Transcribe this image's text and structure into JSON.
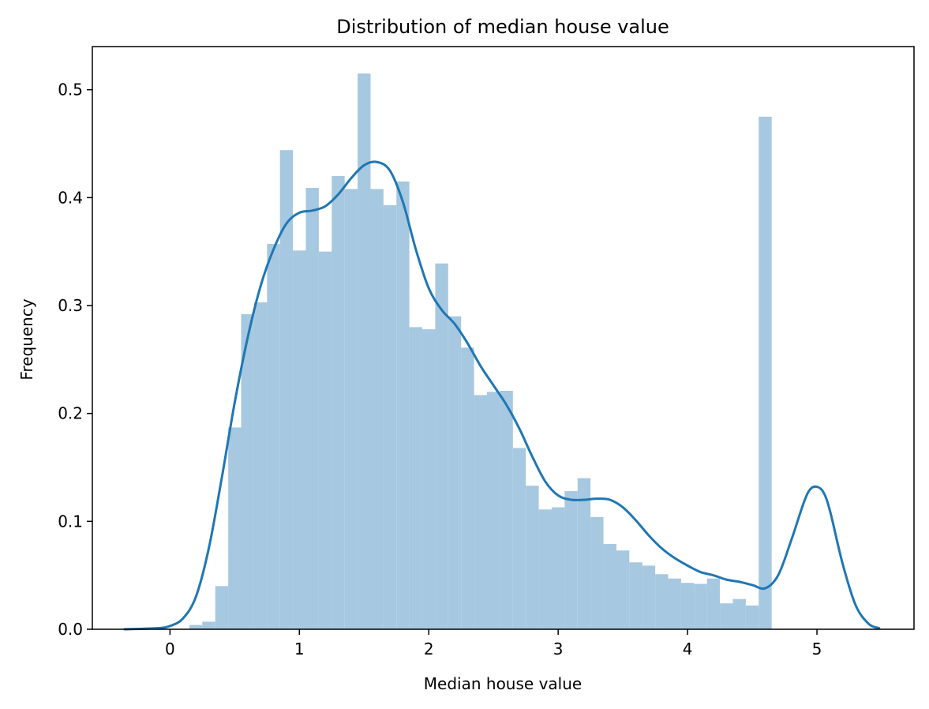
{
  "chart_data": {
    "type": "bar",
    "title": "Distribution of median house value",
    "xlabel": "Median house value",
    "ylabel": "Frequency",
    "xlim": [
      -0.6,
      5.75
    ],
    "ylim": [
      0,
      0.54
    ],
    "xticks": [
      0,
      1,
      2,
      3,
      4,
      5
    ],
    "yticks": [
      0.0,
      0.1,
      0.2,
      0.3,
      0.4,
      0.5
    ],
    "ytick_labels": [
      "0.0",
      "0.1",
      "0.2",
      "0.3",
      "0.4",
      "0.5"
    ],
    "grid": false,
    "legend": "none",
    "bar_color": "#a6c8e0",
    "line_color": "#1f77b4",
    "histogram": {
      "bin_start": 0.15,
      "bin_width": 0.1,
      "values": [
        0.004,
        0.007,
        0.04,
        0.187,
        0.292,
        0.303,
        0.357,
        0.444,
        0.351,
        0.409,
        0.35,
        0.42,
        0.408,
        0.515,
        0.408,
        0.393,
        0.415,
        0.28,
        0.278,
        0.339,
        0.29,
        0.261,
        0.217,
        0.22,
        0.221,
        0.168,
        0.133,
        0.111,
        0.113,
        0.128,
        0.14,
        0.104,
        0.079,
        0.073,
        0.062,
        0.059,
        0.051,
        0.047,
        0.043,
        0.042,
        0.047,
        0.024,
        0.028,
        0.022,
        0.475
      ]
    },
    "kde": {
      "x": [
        -0.35,
        -0.1,
        0.0,
        0.1,
        0.2,
        0.3,
        0.4,
        0.5,
        0.6,
        0.7,
        0.8,
        0.9,
        1.0,
        1.1,
        1.2,
        1.3,
        1.4,
        1.5,
        1.6,
        1.7,
        1.8,
        1.9,
        2.0,
        2.1,
        2.2,
        2.3,
        2.4,
        2.5,
        2.6,
        2.7,
        2.8,
        2.9,
        3.0,
        3.1,
        3.2,
        3.3,
        3.4,
        3.5,
        3.6,
        3.7,
        3.8,
        3.9,
        4.0,
        4.1,
        4.2,
        4.3,
        4.4,
        4.5,
        4.6,
        4.7,
        4.8,
        4.9,
        4.95,
        5.0,
        5.05,
        5.1,
        5.2,
        5.3,
        5.4,
        5.48
      ],
      "y": [
        0.0,
        0.001,
        0.003,
        0.01,
        0.03,
        0.075,
        0.14,
        0.21,
        0.27,
        0.318,
        0.352,
        0.376,
        0.386,
        0.388,
        0.392,
        0.403,
        0.418,
        0.43,
        0.433,
        0.425,
        0.396,
        0.352,
        0.316,
        0.296,
        0.283,
        0.265,
        0.244,
        0.226,
        0.208,
        0.186,
        0.16,
        0.137,
        0.124,
        0.12,
        0.12,
        0.121,
        0.12,
        0.113,
        0.101,
        0.087,
        0.075,
        0.066,
        0.059,
        0.053,
        0.05,
        0.046,
        0.044,
        0.041,
        0.038,
        0.05,
        0.082,
        0.118,
        0.13,
        0.132,
        0.127,
        0.11,
        0.06,
        0.022,
        0.005,
        0.001
      ]
    }
  }
}
